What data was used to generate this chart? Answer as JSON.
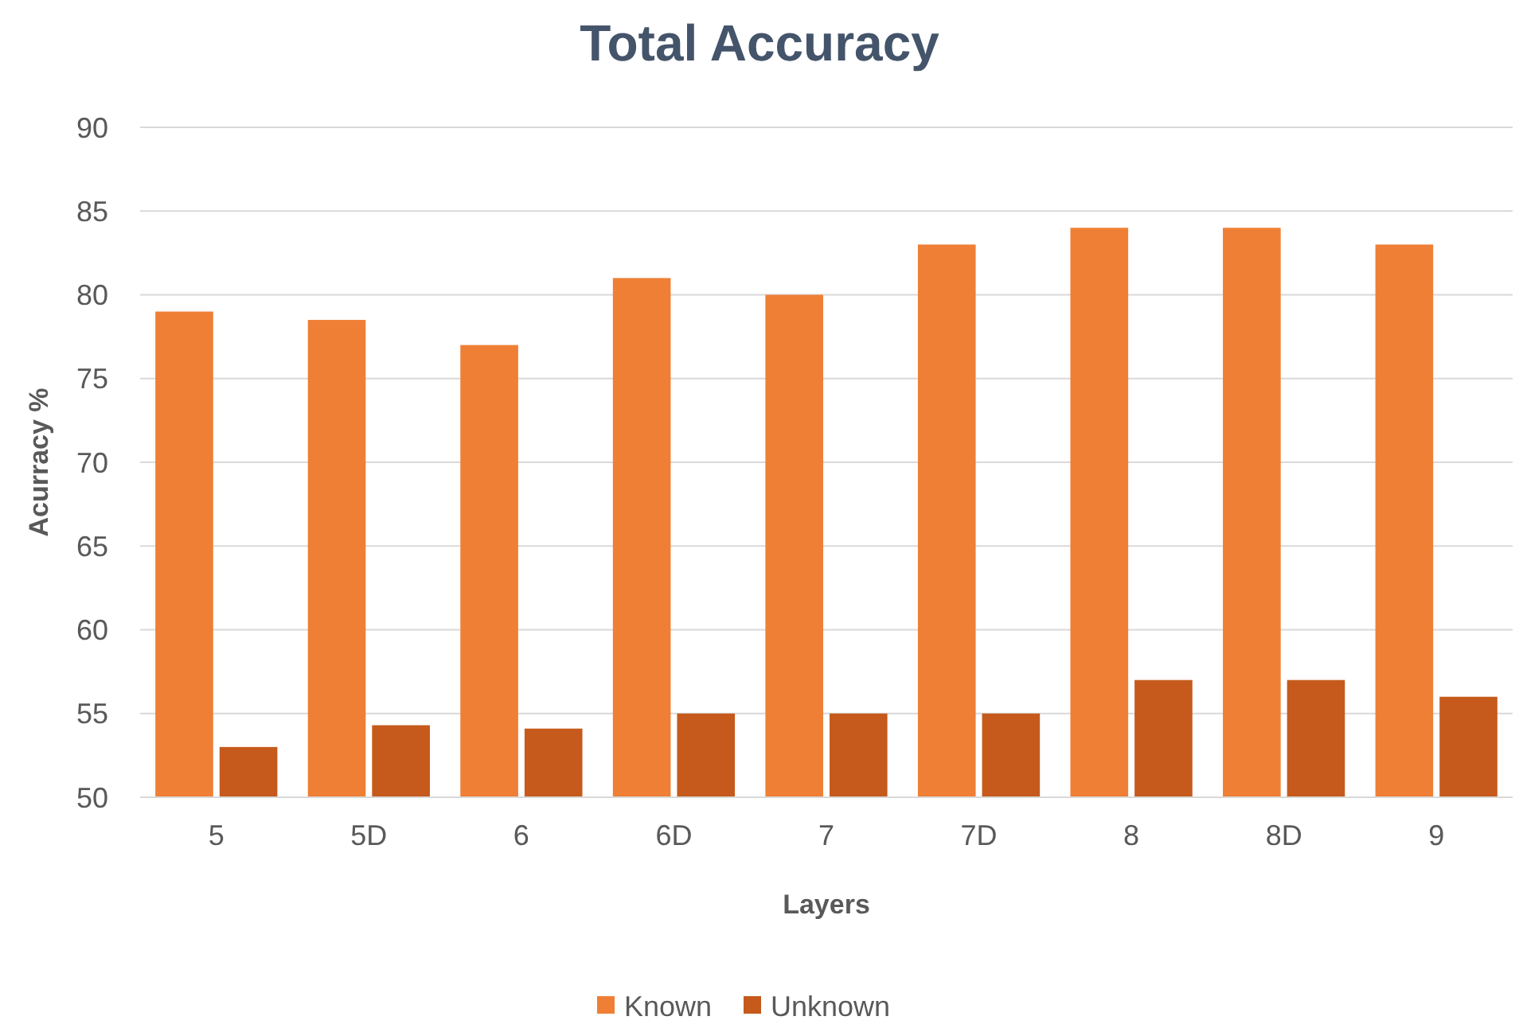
{
  "chart_data": {
    "type": "bar",
    "title": "Total Accuracy",
    "xlabel": "Layers",
    "ylabel": "Acurracy %",
    "categories": [
      "5",
      "5D",
      "6",
      "6D",
      "7",
      "7D",
      "8",
      "8D",
      "9"
    ],
    "series": [
      {
        "name": "Known",
        "color": "#ef7f35",
        "values": [
          79,
          78.5,
          77,
          81,
          80,
          83,
          84,
          84,
          83
        ]
      },
      {
        "name": "Unknown",
        "color": "#c55a1c",
        "values": [
          53,
          54.3,
          54.1,
          55,
          55,
          55,
          57,
          57,
          56
        ]
      }
    ],
    "ylim": [
      50,
      90
    ],
    "yticks": [
      50,
      55,
      60,
      65,
      70,
      75,
      80,
      85,
      90
    ],
    "grid": "y",
    "legend": "bottom"
  }
}
